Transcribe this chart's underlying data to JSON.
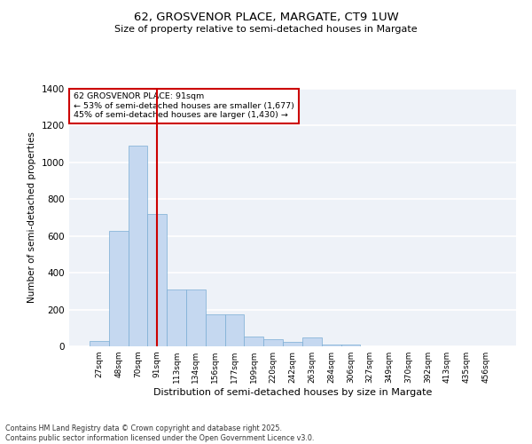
{
  "title1": "62, GROSVENOR PLACE, MARGATE, CT9 1UW",
  "title2": "Size of property relative to semi-detached houses in Margate",
  "xlabel": "Distribution of semi-detached houses by size in Margate",
  "ylabel": "Number of semi-detached properties",
  "categories": [
    "27sqm",
    "48sqm",
    "70sqm",
    "91sqm",
    "113sqm",
    "134sqm",
    "156sqm",
    "177sqm",
    "199sqm",
    "220sqm",
    "242sqm",
    "263sqm",
    "284sqm",
    "306sqm",
    "327sqm",
    "349sqm",
    "370sqm",
    "392sqm",
    "413sqm",
    "435sqm",
    "456sqm"
  ],
  "values": [
    30,
    630,
    1090,
    720,
    310,
    310,
    175,
    175,
    55,
    40,
    25,
    50,
    10,
    10,
    0,
    0,
    0,
    0,
    0,
    0,
    0
  ],
  "bar_color": "#c5d8f0",
  "bar_edge_color": "#7aadd4",
  "highlight_index": 3,
  "highlight_line_color": "#cc0000",
  "annotation_title": "62 GROSVENOR PLACE: 91sqm",
  "annotation_line1": "← 53% of semi-detached houses are smaller (1,677)",
  "annotation_line2": "45% of semi-detached houses are larger (1,430) →",
  "annotation_box_color": "#cc0000",
  "ylim": [
    0,
    1400
  ],
  "yticks": [
    0,
    200,
    400,
    600,
    800,
    1000,
    1200,
    1400
  ],
  "footer1": "Contains HM Land Registry data © Crown copyright and database right 2025.",
  "footer2": "Contains public sector information licensed under the Open Government Licence v3.0.",
  "background_color": "#eef2f8"
}
